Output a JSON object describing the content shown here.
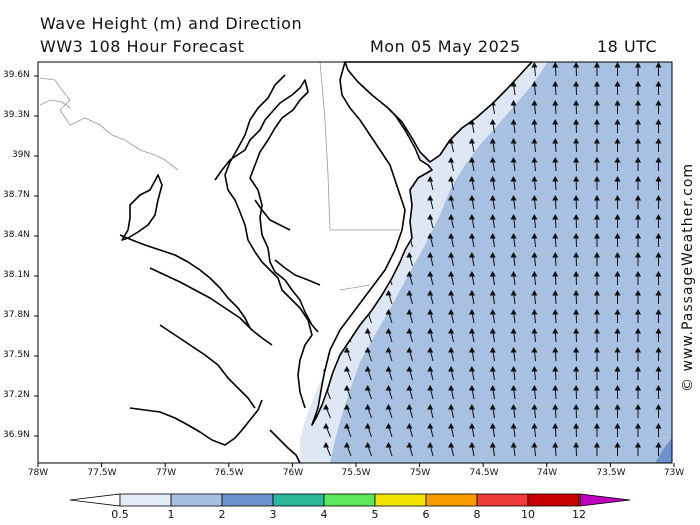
{
  "header": {
    "line1": "Wave Height (m) and Direction",
    "line2": "WW3 108 Hour Forecast",
    "date": "Mon 05 May 2025",
    "time": "18 UTC"
  },
  "copyright": "© www.PassageWeather.com",
  "axes": {
    "lat_labels": [
      "39.6N",
      "39.3N",
      "39N",
      "38.7N",
      "38.4N",
      "38.1N",
      "37.8N",
      "37.5N",
      "37.2N",
      "36.9N"
    ],
    "lon_labels": [
      "78W",
      "77.5W",
      "77W",
      "76.5W",
      "76W",
      "75.5W",
      "75W",
      "74.5W",
      "74W",
      "73.5W",
      "73W"
    ]
  },
  "colorbar": {
    "labels": [
      "0.5",
      "1",
      "2",
      "3",
      "4",
      "5",
      "6",
      "8",
      "10",
      "12"
    ],
    "colors": [
      "#e4ecf8",
      "#a7c0e0",
      "#6d93cf",
      "#2bb89a",
      "#5ee85e",
      "#f5e400",
      "#f59c00",
      "#ef3a3a",
      "#c80000",
      "#c000c0"
    ]
  },
  "colors": {
    "land": "#ffffff",
    "wave_light": "#dfe7f4",
    "wave_mid": "#a8c0e1",
    "wave_dark": "#6d93cf",
    "coast": "#000000",
    "border": "#999999"
  }
}
